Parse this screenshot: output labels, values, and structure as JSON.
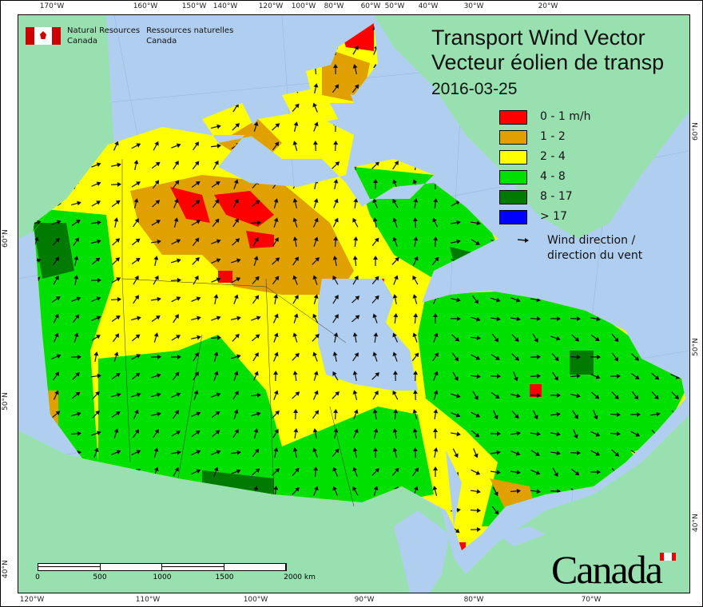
{
  "title": {
    "line1": "Transport Wind Vector",
    "line2": "Vecteur éolien de transp",
    "date": "2016-03-25"
  },
  "agency": {
    "en_line1": "Natural Resources",
    "en_line2": "Canada",
    "fr_line1": "Ressources naturelles",
    "fr_line2": "Canada"
  },
  "legend": {
    "entries": [
      {
        "label": "0 - 1 m/h",
        "color": "#ff0000"
      },
      {
        "label": "1 - 2",
        "color": "#e0a000"
      },
      {
        "label": "2 - 4",
        "color": "#ffff00"
      },
      {
        "label": "4 - 8",
        "color": "#00e000"
      },
      {
        "label": "8 - 17",
        "color": "#007a00"
      },
      {
        "label": "> 17",
        "color": "#0000ff"
      }
    ],
    "wind_line1": "Wind direction /",
    "wind_line2": "direction du vent",
    "wind_icon": "arrow-icon"
  },
  "axes": {
    "top": [
      "170°W",
      "160°W",
      "150°W",
      "140°W",
      "120°W",
      "100°W",
      "80°W",
      "60°W",
      "50°W",
      "40°W",
      "30°W",
      "20°W"
    ],
    "bottom": [
      "120°W",
      "110°W",
      "100°W",
      "90°W",
      "80°W",
      "70°W"
    ],
    "left": [
      "60°N",
      "50°N",
      "40°N"
    ],
    "right": [
      "60°N",
      "50°N",
      "40°N"
    ]
  },
  "scale": {
    "labels": [
      "0",
      "500",
      "1000",
      "1500",
      "2000 km"
    ]
  },
  "wordmark": "Canada",
  "colors": {
    "ocean": "#b0cff0",
    "land": "#98e0b0",
    "arrow": "#111111"
  }
}
